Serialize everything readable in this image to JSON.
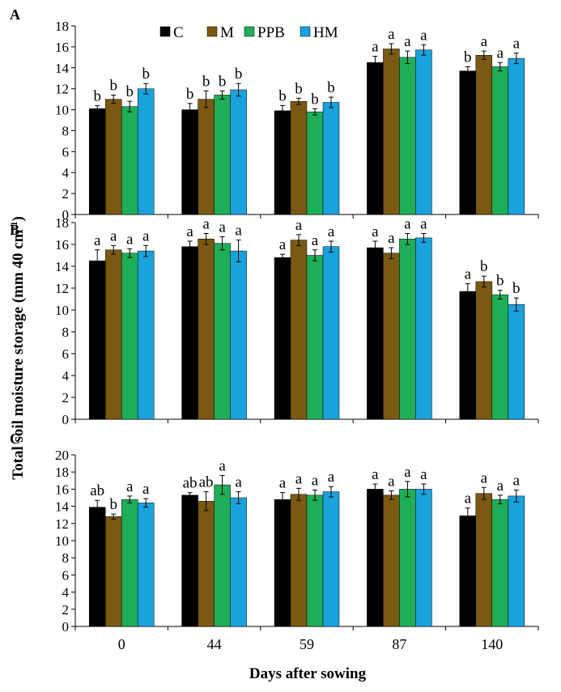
{
  "ylabel_main": "Total soil moisture storage (mm 40 cm",
  "ylabel_sup": "-1",
  "ylabel_close": ")",
  "xlabel": "Days after sowing",
  "colors": {
    "C": "#000000",
    "M": "#7a5a12",
    "PPB": "#1fae58",
    "HM": "#1aa2dd"
  },
  "legend": [
    {
      "key": "C",
      "label": "C"
    },
    {
      "key": "M",
      "label": "M"
    },
    {
      "key": "PPB",
      "label": "PPB"
    },
    {
      "key": "HM",
      "label": "HM"
    }
  ],
  "chart_data": [
    {
      "panel": "A",
      "type": "bar",
      "categories": [
        "0",
        "44",
        "59",
        "87",
        "140"
      ],
      "ylim": [
        0,
        18
      ],
      "yticks": [
        0,
        2,
        4,
        6,
        8,
        10,
        12,
        14,
        16,
        18
      ],
      "series": [
        {
          "name": "C",
          "values": [
            10.1,
            10.0,
            9.9,
            14.5,
            13.7
          ],
          "errors": [
            0.3,
            0.6,
            0.5,
            0.6,
            0.4
          ],
          "letters": [
            "b",
            "b",
            "b",
            "a",
            "b"
          ]
        },
        {
          "name": "M",
          "values": [
            11.0,
            11.0,
            10.8,
            15.8,
            15.2
          ],
          "errors": [
            0.4,
            0.8,
            0.3,
            0.5,
            0.4
          ],
          "letters": [
            "b",
            "b",
            "b",
            "a",
            "a"
          ]
        },
        {
          "name": "PPB",
          "values": [
            10.3,
            11.4,
            9.8,
            15.0,
            14.1
          ],
          "errors": [
            0.5,
            0.4,
            0.3,
            0.6,
            0.4
          ],
          "letters": [
            "b",
            "b",
            "b",
            "a",
            "a"
          ]
        },
        {
          "name": "HM",
          "values": [
            12.0,
            11.9,
            10.7,
            15.7,
            14.9
          ],
          "errors": [
            0.5,
            0.6,
            0.5,
            0.5,
            0.5
          ],
          "letters": [
            "b",
            "b",
            "b",
            "a",
            "a"
          ]
        }
      ]
    },
    {
      "panel": "B",
      "type": "bar",
      "categories": [
        "0",
        "44",
        "59",
        "87",
        "140"
      ],
      "ylim": [
        0,
        18
      ],
      "yticks": [
        0,
        2,
        4,
        6,
        8,
        10,
        12,
        14,
        16,
        18
      ],
      "series": [
        {
          "name": "C",
          "values": [
            14.5,
            15.8,
            14.8,
            15.7,
            11.7
          ],
          "errors": [
            1.0,
            0.5,
            0.3,
            0.6,
            0.7
          ],
          "letters": [
            "a",
            "a",
            "a",
            "a",
            "a"
          ]
        },
        {
          "name": "M",
          "values": [
            15.5,
            16.5,
            16.4,
            15.2,
            12.6
          ],
          "errors": [
            0.4,
            0.5,
            0.5,
            0.5,
            0.5
          ],
          "letters": [
            "a",
            "a",
            "a",
            "a",
            "b"
          ]
        },
        {
          "name": "PPB",
          "values": [
            15.2,
            16.1,
            15.0,
            16.5,
            11.4
          ],
          "errors": [
            0.4,
            0.6,
            0.5,
            0.5,
            0.4
          ],
          "letters": [
            "a",
            "a",
            "a",
            "a",
            "b"
          ]
        },
        {
          "name": "HM",
          "values": [
            15.4,
            15.4,
            15.8,
            16.6,
            10.5
          ],
          "errors": [
            0.5,
            1.0,
            0.5,
            0.4,
            0.6
          ],
          "letters": [
            "a",
            "a",
            "a",
            "a",
            "b"
          ]
        }
      ]
    },
    {
      "panel": "C",
      "type": "bar",
      "categories": [
        "0",
        "44",
        "59",
        "87",
        "140"
      ],
      "ylim": [
        0,
        20
      ],
      "yticks": [
        0,
        2,
        4,
        6,
        8,
        10,
        12,
        14,
        16,
        18,
        20
      ],
      "series": [
        {
          "name": "C",
          "values": [
            13.9,
            15.3,
            14.8,
            16.0,
            12.9
          ],
          "errors": [
            0.8,
            0.3,
            0.8,
            0.6,
            0.9
          ],
          "letters": [
            "ab",
            "ab",
            "a",
            "a",
            "a"
          ]
        },
        {
          "name": "M",
          "values": [
            12.8,
            14.6,
            15.4,
            15.3,
            15.5
          ],
          "errors": [
            0.3,
            1.1,
            0.7,
            0.5,
            0.7
          ],
          "letters": [
            "b",
            "ab",
            "a",
            "a",
            "a"
          ]
        },
        {
          "name": "PPB",
          "values": [
            14.8,
            16.5,
            15.3,
            16.0,
            14.8
          ],
          "errors": [
            0.4,
            1.1,
            0.6,
            0.9,
            0.5
          ],
          "letters": [
            "a",
            "a",
            "a",
            "a",
            "a"
          ]
        },
        {
          "name": "HM",
          "values": [
            14.4,
            15.0,
            15.7,
            16.0,
            15.2
          ],
          "errors": [
            0.5,
            0.7,
            0.6,
            0.6,
            0.7
          ],
          "letters": [
            "a",
            "a",
            "a",
            "a",
            "a"
          ]
        }
      ]
    }
  ]
}
